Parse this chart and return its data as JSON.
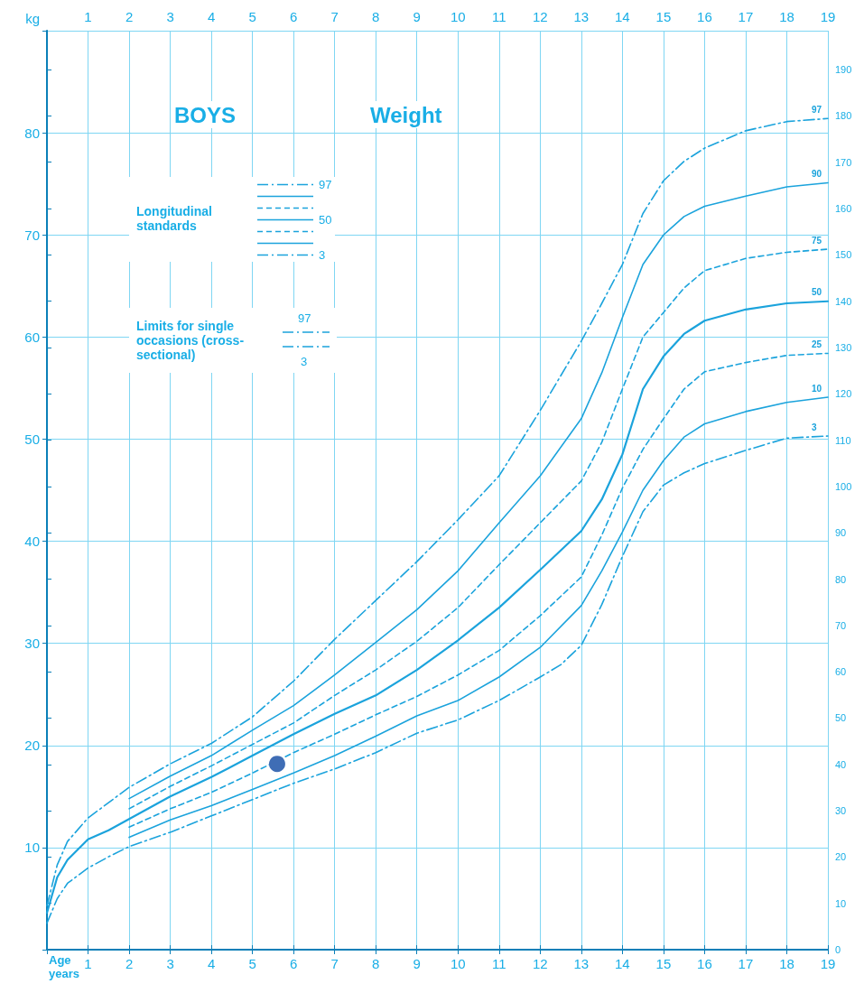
{
  "chart_data": {
    "type": "line",
    "title": "BOYS",
    "subtitle": "Weight",
    "xlabel": "Age years",
    "ylabel": "kg",
    "annotations": [
      "Longitudinal standards",
      "Limits for single occasions (cross-sectional)"
    ],
    "xlim": [
      0,
      19
    ],
    "xticks": [
      1,
      2,
      3,
      4,
      5,
      6,
      7,
      8,
      9,
      10,
      11,
      12,
      13,
      14,
      15,
      16,
      17,
      18,
      19
    ],
    "x2lim": [
      0,
      19
    ],
    "x2ticks": [
      1,
      2,
      3,
      4,
      5,
      6,
      7,
      8,
      9,
      10,
      11,
      12,
      13,
      14,
      15,
      16,
      17,
      18,
      19
    ],
    "ylim": [
      0,
      90
    ],
    "yticks": [
      10,
      20,
      30,
      40,
      50,
      60,
      70,
      80
    ],
    "y2lim": [
      0,
      198.4
    ],
    "y2ticks": [
      0,
      10,
      20,
      30,
      40,
      50,
      60,
      70,
      80,
      90,
      100,
      110,
      120,
      130,
      140,
      150,
      160,
      170,
      180,
      190
    ],
    "grid": true,
    "marker": "none",
    "legend": "top left",
    "series": [
      {
        "name": "97",
        "color": "#1ba3dc",
        "line_style": "dashdot",
        "x": [
          0,
          0.25,
          0.5,
          1,
          1.5,
          2,
          3,
          4,
          5,
          6,
          7,
          8,
          9,
          10,
          11,
          12,
          13,
          13.5,
          14,
          14.5,
          15,
          15.5,
          16,
          17,
          18,
          19
        ],
        "values": [
          4.3,
          8.3,
          10.6,
          12.9,
          14.4,
          15.9,
          18.2,
          20.2,
          22.8,
          26.3,
          30.4,
          34.2,
          38.0,
          42.1,
          46.4,
          52.8,
          59.6,
          63.3,
          67.1,
          72.1,
          75.3,
          77.2,
          78.5,
          80.2,
          81.1,
          81.4
        ]
      },
      {
        "name": "90",
        "color": "#1ba3dc",
        "line_style": "solid",
        "x": [
          2,
          3,
          4,
          5,
          6,
          7,
          8,
          9,
          10,
          11,
          12,
          13,
          13.5,
          14,
          14.5,
          15,
          15.5,
          16,
          17,
          18,
          19
        ],
        "values": [
          14.8,
          17.0,
          19.0,
          21.5,
          23.9,
          26.9,
          30.1,
          33.3,
          37.1,
          41.8,
          46.4,
          52.0,
          56.5,
          61.9,
          67.1,
          70.0,
          71.8,
          72.8,
          73.8,
          74.7,
          75.1
        ]
      },
      {
        "name": "75",
        "color": "#1ba3dc",
        "line_style": "dashed",
        "x": [
          2,
          3,
          4,
          5,
          6,
          7,
          8,
          9,
          10,
          11,
          12,
          13,
          13.5,
          14,
          14.5,
          15,
          15.5,
          16,
          17,
          18,
          19
        ],
        "values": [
          13.8,
          16.0,
          18.0,
          20.1,
          22.2,
          24.9,
          27.4,
          30.2,
          33.5,
          37.7,
          41.8,
          45.9,
          49.7,
          54.9,
          60.0,
          62.4,
          64.8,
          66.5,
          67.7,
          68.3,
          68.6
        ]
      },
      {
        "name": "50",
        "color": "#1ba3dc",
        "line_style": "solid",
        "x": [
          0,
          0.25,
          0.5,
          1,
          1.5,
          2,
          3,
          4,
          5,
          6,
          7,
          8,
          9,
          10,
          11,
          12,
          13,
          13.5,
          14,
          14.5,
          15,
          15.5,
          16,
          17,
          18,
          19
        ],
        "values": [
          3.6,
          7.1,
          8.8,
          10.8,
          11.7,
          12.8,
          15.0,
          16.9,
          19.0,
          21.1,
          23.1,
          24.9,
          27.4,
          30.3,
          33.5,
          37.2,
          41.0,
          44.1,
          48.5,
          54.9,
          58.1,
          60.3,
          61.6,
          62.7,
          63.3,
          63.5
        ]
      },
      {
        "name": "25",
        "color": "#1ba3dc",
        "line_style": "dashed",
        "x": [
          2,
          3,
          4,
          5,
          6,
          7,
          8,
          9,
          10,
          11,
          12,
          13,
          13.5,
          14,
          14.5,
          15,
          15.5,
          16,
          17,
          18,
          19
        ],
        "values": [
          12.0,
          13.8,
          15.4,
          17.3,
          19.3,
          21.1,
          23.0,
          24.8,
          26.9,
          29.3,
          32.7,
          36.5,
          40.6,
          45.2,
          49.0,
          52.0,
          54.9,
          56.6,
          57.5,
          58.2,
          58.4
        ]
      },
      {
        "name": "10",
        "color": "#1ba3dc",
        "line_style": "solid",
        "x": [
          2,
          3,
          4,
          5,
          6,
          7,
          8,
          9,
          10,
          11,
          12,
          13,
          13.5,
          14,
          14.5,
          15,
          15.5,
          16,
          17,
          18,
          19
        ],
        "values": [
          11.0,
          12.7,
          14.1,
          15.7,
          17.3,
          19.0,
          20.9,
          22.9,
          24.4,
          26.7,
          29.6,
          33.7,
          37.1,
          40.9,
          45.0,
          47.9,
          50.2,
          51.5,
          52.7,
          53.6,
          54.1
        ]
      },
      {
        "name": "3",
        "color": "#1ba3dc",
        "line_style": "dashdot",
        "x": [
          0,
          0.25,
          0.5,
          1,
          1.5,
          2,
          3,
          4,
          5,
          6,
          7,
          8,
          9,
          10,
          11,
          12,
          12.5,
          13,
          13.5,
          14,
          14.5,
          15,
          15.5,
          16,
          17,
          18,
          19
        ],
        "values": [
          2.6,
          5.0,
          6.5,
          8.0,
          9.1,
          10.1,
          11.5,
          13.1,
          14.7,
          16.3,
          17.7,
          19.3,
          21.2,
          22.5,
          24.4,
          26.7,
          27.9,
          29.8,
          33.8,
          38.5,
          42.9,
          45.5,
          46.7,
          47.6,
          48.9,
          50.1,
          50.3
        ]
      },
      {
        "type": "scatter",
        "color": "#3f6db5",
        "marker": "circle",
        "x": [
          5.6
        ],
        "values": [
          18.2
        ]
      }
    ]
  }
}
